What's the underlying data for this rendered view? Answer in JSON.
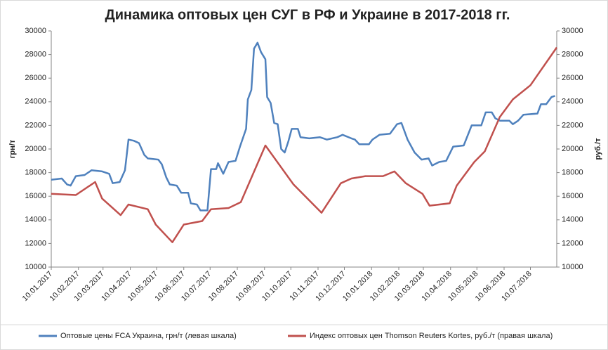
{
  "chart_data": {
    "type": "line",
    "title": "Динамика оптовых цен СУГ в РФ и Украине в 2017-2018 гг.",
    "y_label": "грн/т",
    "y2_label": "руб./т",
    "xlim": [
      "10.01.2017",
      "09.08.2018"
    ],
    "xticks": [
      "10.01.2017",
      "10.02.2017",
      "10.03.2017",
      "10.04.2017",
      "10.05.2017",
      "10.06.2017",
      "10.07.2017",
      "10.08.2017",
      "10.09.2017",
      "10.10.2017",
      "10.11.2017",
      "10.12.2017",
      "10.01.2018",
      "10.02.2018",
      "10.03.2018",
      "10.04.2018",
      "10.05.2018",
      "10.06.2018",
      "10.07.2018"
    ],
    "ylim": [
      10000,
      30000
    ],
    "yticks": [
      10000,
      12000,
      14000,
      16000,
      18000,
      20000,
      22000,
      24000,
      26000,
      28000,
      30000
    ],
    "y2lim": [
      10000,
      30000
    ],
    "y2ticks": [
      10000,
      12000,
      14000,
      16000,
      18000,
      20000,
      22000,
      24000,
      26000,
      28000,
      30000
    ],
    "legend": "bottom",
    "series": [
      {
        "name": "Оптовые цены FCA Украина, грн/т (левая шкала)",
        "color": "#4f81bd",
        "axis": "y",
        "x": [
          "10.01.2017",
          "22.01.2017",
          "28.01.2017",
          "01.02.2017",
          "07.02.2017",
          "17.02.2017",
          "25.02.2017",
          "09.03.2017",
          "17.03.2017",
          "21.03.2017",
          "29.03.2017",
          "04.04.2017",
          "08.04.2017",
          "14.04.2017",
          "20.04.2017",
          "26.04.2017",
          "30.04.2017",
          "12.05.2017",
          "16.05.2017",
          "21.05.2017",
          "25.05.2017",
          "02.06.2017",
          "07.06.2017",
          "15.06.2017",
          "18.06.2017",
          "25.06.2017",
          "29.06.2017",
          "07.07.2017",
          "11.07.2017",
          "17.07.2017",
          "19.07.2017",
          "25.07.2017",
          "31.07.2017",
          "08.08.2017",
          "13.08.2017",
          "20.08.2017",
          "22.08.2017",
          "26.08.2017",
          "29.08.2017",
          "02.09.2017",
          "06.09.2017",
          "11.09.2017",
          "13.09.2017",
          "17.09.2017",
          "21.09.2017",
          "25.09.2017",
          "29.09.2017",
          "03.10.2017",
          "07.10.2017",
          "11.10.2017",
          "18.10.2017",
          "21.10.2017",
          "31.10.2017",
          "12.11.2017",
          "20.11.2017",
          "02.12.2017",
          "08.12.2017",
          "18.12.2017",
          "22.12.2017",
          "27.12.2017",
          "07.01.2018",
          "11.01.2018",
          "19.01.2018",
          "31.01.2018",
          "08.02.2018",
          "13.02.2018",
          "20.02.2018",
          "28.02.2018",
          "08.03.2018",
          "16.03.2018",
          "20.03.2018",
          "28.03.2018",
          "05.04.2018",
          "13.04.2018",
          "25.04.2018",
          "04.05.2018",
          "15.05.2018",
          "20.05.2018",
          "27.05.2018",
          "31.05.2018",
          "05.06.2018",
          "16.06.2018",
          "20.06.2018",
          "26.06.2018",
          "02.07.2018",
          "18.07.2018",
          "22.07.2018",
          "28.07.2018",
          "03.08.2018",
          "07.08.2018"
        ],
        "values": [
          17400,
          17500,
          17000,
          16900,
          17700,
          17800,
          18200,
          18100,
          17900,
          17100,
          17200,
          18200,
          20800,
          20700,
          20500,
          19500,
          19200,
          19100,
          18700,
          17600,
          17000,
          16900,
          16300,
          16300,
          15400,
          15300,
          14800,
          14800,
          18300,
          18300,
          18800,
          17900,
          18900,
          19000,
          20200,
          21700,
          24200,
          25000,
          28500,
          29000,
          28200,
          27600,
          24400,
          23900,
          22200,
          22100,
          20000,
          19700,
          20600,
          21700,
          21700,
          21000,
          20900,
          21000,
          20800,
          21000,
          21200,
          20900,
          20800,
          20400,
          20400,
          20800,
          21200,
          21300,
          22100,
          22200,
          20800,
          19700,
          19100,
          19200,
          18600,
          18900,
          19000,
          20200,
          20300,
          22000,
          22000,
          23100,
          23100,
          22600,
          22400,
          22400,
          22100,
          22400,
          22900,
          23000,
          23800,
          23800,
          24400,
          24500
        ]
      },
      {
        "name": "Индекс оптовых цен Thomson Reuters Kortes, руб./т (правая шкала)",
        "color": "#c0504d",
        "axis": "y2",
        "x": [
          "10.01.2017",
          "07.02.2017",
          "01.03.2017",
          "09.03.2017",
          "30.03.2017",
          "08.04.2017",
          "30.04.2017",
          "09.05.2017",
          "28.05.2017",
          "10.06.2017",
          "01.07.2017",
          "11.07.2017",
          "31.07.2017",
          "14.08.2017",
          "11.09.2017",
          "13.10.2017",
          "14.11.2017",
          "06.12.2017",
          "18.12.2017",
          "03.01.2018",
          "23.01.2018",
          "05.02.2018",
          "18.02.2018",
          "09.03.2018",
          "17.03.2018",
          "09.04.2018",
          "17.04.2018",
          "07.05.2018",
          "19.05.2018",
          "05.06.2018",
          "20.06.2018",
          "10.07.2018",
          "09.08.2018"
        ],
        "values": [
          16200,
          16100,
          17200,
          15800,
          14400,
          15300,
          14900,
          13600,
          12100,
          13600,
          13900,
          14900,
          15000,
          15500,
          20300,
          17000,
          14600,
          17100,
          17500,
          17700,
          17700,
          18100,
          17100,
          16200,
          15200,
          15400,
          16900,
          18900,
          19800,
          22700,
          24200,
          25400,
          28600
        ]
      }
    ]
  }
}
